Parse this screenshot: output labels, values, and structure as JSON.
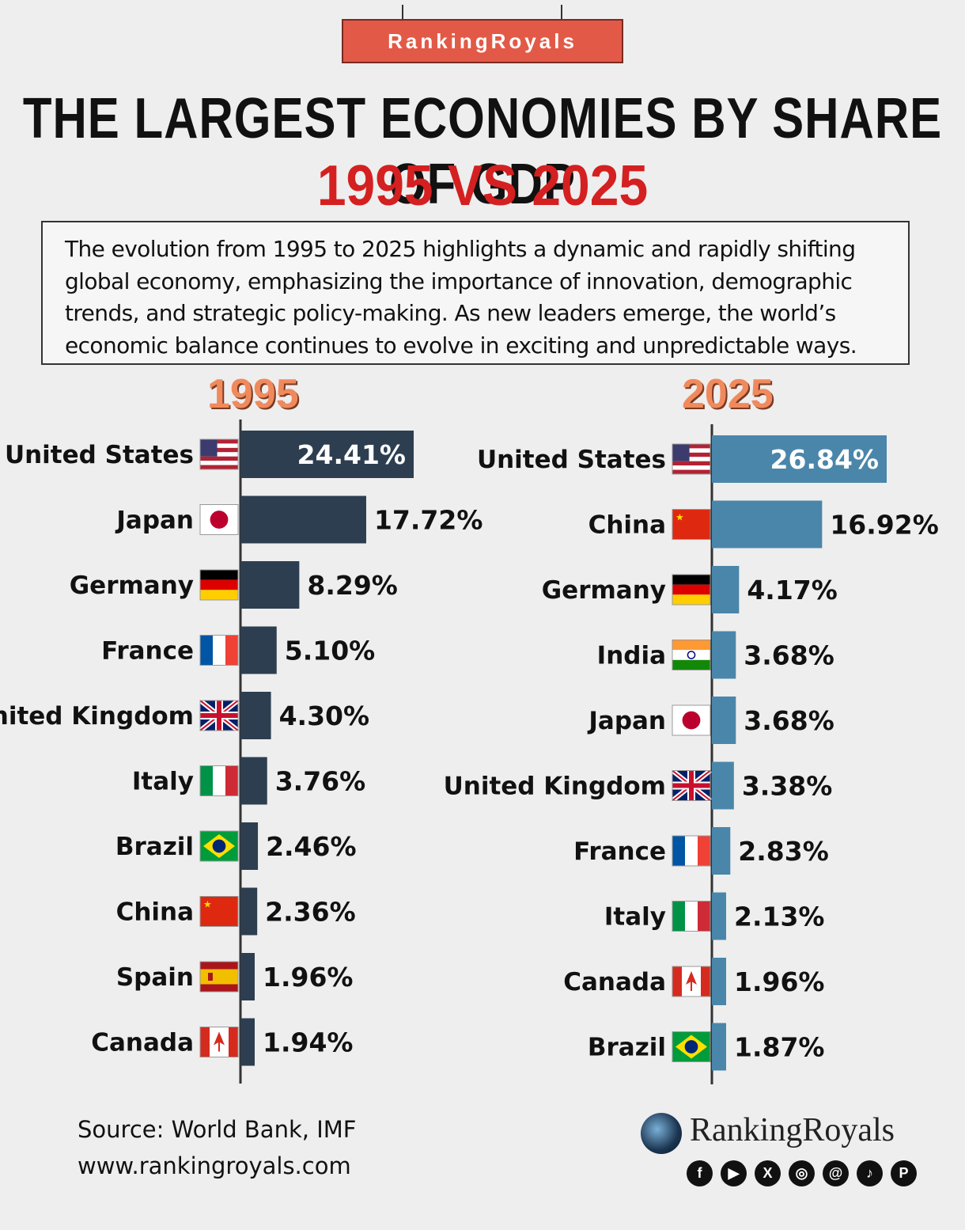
{
  "brand": "RankingRoyals",
  "title": "THE LARGEST ECONOMIES BY SHARE OF GDP",
  "subtitle": "1995 VS 2025",
  "description": "The evolution from 1995 to 2025 highlights a dynamic and rapidly shifting global economy, emphasizing the importance of innovation, demographic trends, and strategic policy-making. As new leaders emerge, the world’s economic balance continues to evolve in exciting and unpredictable ways.",
  "source_line": "Source: World Bank, IMF",
  "website": "www.rankingroyals.com",
  "logo_text": "RankingRoyals",
  "socials": [
    "facebook-icon",
    "youtube-icon",
    "x-icon",
    "instagram-icon",
    "threads-icon",
    "tiktok-icon",
    "pinterest-icon"
  ],
  "colors": {
    "bar_1995": "#2d3e50",
    "bar_2025": "#4a86aa",
    "year_heading": "#f08a5d",
    "subtitle": "#d42020",
    "brand_box": "#e25a47"
  },
  "chart_data": [
    {
      "type": "bar",
      "orientation": "horizontal",
      "title": "1995",
      "categories": [
        "United States",
        "Japan",
        "Germany",
        "France",
        "United Kingdom",
        "Italy",
        "Brazil",
        "China",
        "Spain",
        "Canada"
      ],
      "values": [
        24.41,
        17.72,
        8.29,
        5.1,
        4.3,
        3.76,
        2.46,
        2.36,
        1.96,
        1.94
      ],
      "labels": [
        "24.41%",
        "17.72%",
        "8.29%",
        "5.10%",
        "4.30%",
        "3.76%",
        "2.46%",
        "2.36%",
        "1.96%",
        "1.94%"
      ],
      "color": "#2d3e50",
      "grid": false
    },
    {
      "type": "bar",
      "orientation": "horizontal",
      "title": "2025",
      "categories": [
        "United States",
        "China",
        "Germany",
        "India",
        "Japan",
        "United Kingdom",
        "France",
        "Italy",
        "Canada",
        "Brazil"
      ],
      "values": [
        26.84,
        16.92,
        4.17,
        3.68,
        3.68,
        3.38,
        2.83,
        2.13,
        1.96,
        1.87
      ],
      "labels": [
        "26.84%",
        "16.92%",
        "4.17%",
        "3.68%",
        "3.68%",
        "3.38%",
        "2.83%",
        "2.13%",
        "1.96%",
        "1.87%"
      ],
      "color": "#4a86aa",
      "grid": false
    }
  ]
}
